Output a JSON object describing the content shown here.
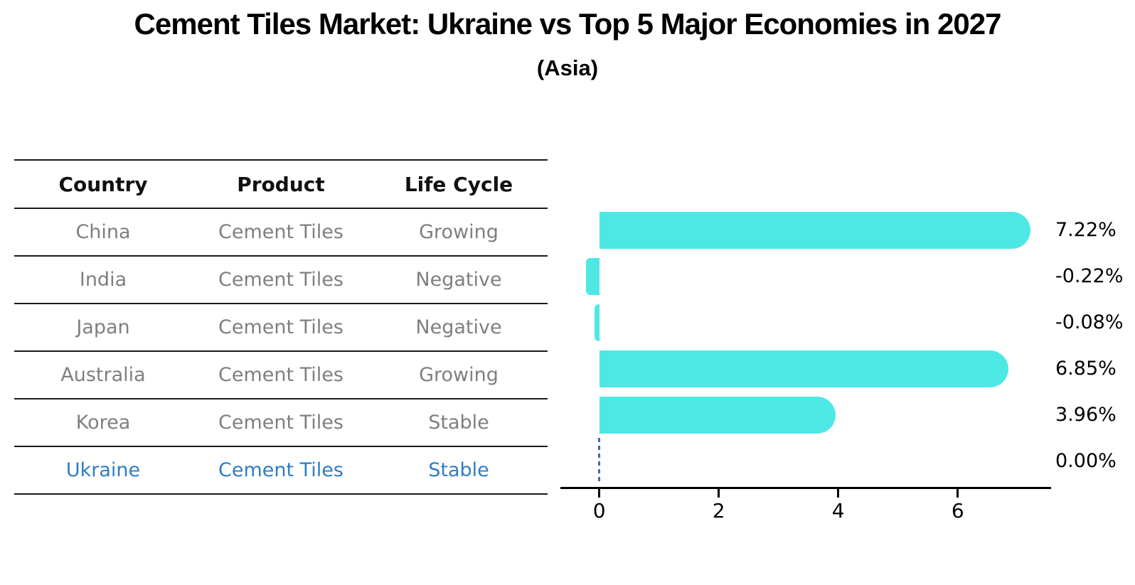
{
  "title": "Cement Tiles Market: Ukraine vs Top 5 Major Economies in 2027",
  "subtitle": "(Asia)",
  "table": {
    "headers": [
      "Country",
      "Product",
      "Life Cycle"
    ],
    "rows": [
      {
        "country": "China",
        "product": "Cement Tiles",
        "life_cycle": "Growing",
        "highlight": false
      },
      {
        "country": "India",
        "product": "Cement Tiles",
        "life_cycle": "Negative",
        "highlight": false
      },
      {
        "country": "Japan",
        "product": "Cement Tiles",
        "life_cycle": "Negative",
        "highlight": false
      },
      {
        "country": "Australia",
        "product": "Cement Tiles",
        "life_cycle": "Growing",
        "highlight": false
      },
      {
        "country": "Korea",
        "product": "Cement Tiles",
        "life_cycle": "Stable",
        "highlight": false
      },
      {
        "country": "Ukraine",
        "product": "Cement Tiles",
        "life_cycle": "Stable",
        "highlight": true
      }
    ],
    "body_text_color": "#7f7f7f",
    "highlight_text_color": "#2e7dc7",
    "header_text_color": "#111111"
  },
  "chart_data": {
    "type": "bar",
    "orientation": "horizontal",
    "title": "Cement Tiles Market: Ukraine vs Top 5 Major Economies in 2027 (Asia)",
    "categories": [
      "China",
      "India",
      "Japan",
      "Australia",
      "Korea",
      "Ukraine"
    ],
    "values": [
      7.22,
      -0.22,
      -0.08,
      6.85,
      3.96,
      0.0
    ],
    "value_labels": [
      "7.22%",
      "-0.22%",
      "-0.08%",
      "6.85%",
      "3.96%",
      "0.00%"
    ],
    "x_ticks": [
      "0",
      "2",
      "4",
      "6"
    ],
    "xlim": [
      -0.65,
      7.55
    ],
    "grid": false,
    "legend": false,
    "bar_color": "#4de8e4",
    "zero_marker_rows": [
      "Ukraine"
    ],
    "zero_marker_style": "dotted",
    "zero_marker_color": "#3a70ad",
    "axis_color": "#000000",
    "label_color": "#000000"
  }
}
